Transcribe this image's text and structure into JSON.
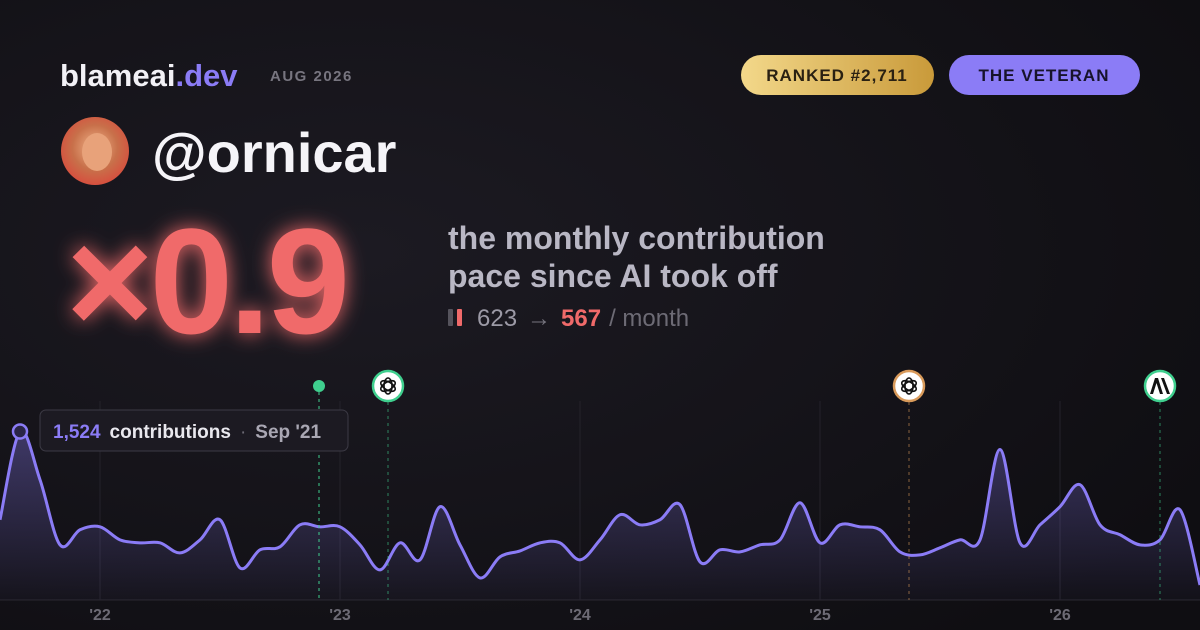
{
  "header": {
    "brand": "blameai",
    "brand_tld": ".dev",
    "date": "AUG 2026",
    "rank": "RANKED #2,711",
    "badge": "THE VETERAN"
  },
  "profile": {
    "handle": "@ornicar"
  },
  "headline": {
    "multiplier": "×0.9",
    "caption_line1": "the monthly contribution",
    "caption_line2": "pace since AI took off",
    "before": "623",
    "arrow": "→",
    "after": "567",
    "unit": "/ month"
  },
  "tooltip": {
    "value": "1,524",
    "unit": "contributions",
    "separator": "·",
    "date": "Sep '21"
  },
  "chart_data": {
    "type": "line",
    "color": "#8b7cf6",
    "categories": [
      null,
      null,
      null,
      null,
      null,
      "'22",
      null,
      null,
      null,
      null,
      null,
      null,
      null,
      null,
      null,
      null,
      null,
      "'23",
      null,
      null,
      null,
      null,
      null,
      null,
      null,
      null,
      null,
      null,
      null,
      "'24",
      null,
      null,
      null,
      null,
      null,
      null,
      null,
      null,
      null,
      null,
      null,
      "'25",
      null,
      null,
      null,
      null,
      null,
      null,
      null,
      null,
      null,
      null,
      null,
      "'26",
      null,
      null,
      null,
      null,
      null,
      null,
      null
    ],
    "values": [
      726,
      1524,
      1088,
      499,
      635,
      662,
      544,
      517,
      517,
      426,
      544,
      726,
      290,
      454,
      481,
      680,
      662,
      662,
      499,
      272,
      517,
      363,
      844,
      499,
      200,
      390,
      444,
      517,
      517,
      363,
      544,
      771,
      680,
      726,
      862,
      345,
      454,
      435,
      499,
      544,
      880,
      517,
      680,
      662,
      635,
      435,
      408,
      472,
      544,
      544,
      1361,
      517,
      680,
      844,
      1043,
      680,
      590,
      499,
      544,
      816,
      136
    ],
    "ylim": [
      0,
      1800
    ],
    "grid": true
  }
}
